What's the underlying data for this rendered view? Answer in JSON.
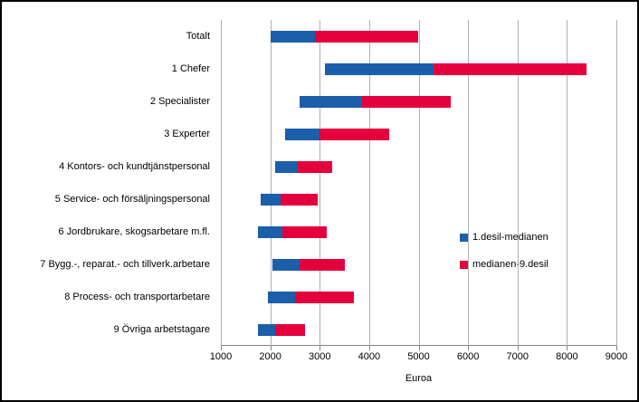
{
  "chart_data": {
    "type": "bar",
    "orientation": "horizontal",
    "title": "",
    "xlabel": "Euroa",
    "ylabel": "",
    "xlim": [
      1000,
      9000
    ],
    "xticks": [
      1000,
      2000,
      3000,
      4000,
      5000,
      6000,
      7000,
      8000,
      9000
    ],
    "grid": true,
    "legend_position": "inside-right",
    "categories": [
      "Totalt",
      "1 Chefer",
      "2 Specialister",
      "3 Experter",
      "4 Kontors- och kundtjänstpersonal",
      "5 Service- och försäljningspersonal",
      "6 Jordbrukare, skogsarbetare m.fl.",
      "7 Bygg.-, reparat.- och tillverk.arbetare",
      "8 Process- och transportarbetare",
      "9 Övriga arbetstagare"
    ],
    "values": {
      "decile1": [
        2000,
        3100,
        2600,
        2300,
        2100,
        1800,
        1750,
        2050,
        1950,
        1750
      ],
      "median": [
        2900,
        5300,
        3850,
        3000,
        2550,
        2200,
        2250,
        2600,
        2500,
        2100
      ],
      "decile9": [
        5000,
        8400,
        5650,
        4400,
        3250,
        2950,
        3150,
        3500,
        3700,
        2700
      ]
    },
    "series": [
      {
        "name": "1.desil-medianen",
        "color": "#1B5FAA",
        "from": "decile1",
        "to": "median"
      },
      {
        "name": "medianen-9.desil",
        "color": "#E3003D",
        "from": "median",
        "to": "decile9"
      }
    ]
  }
}
